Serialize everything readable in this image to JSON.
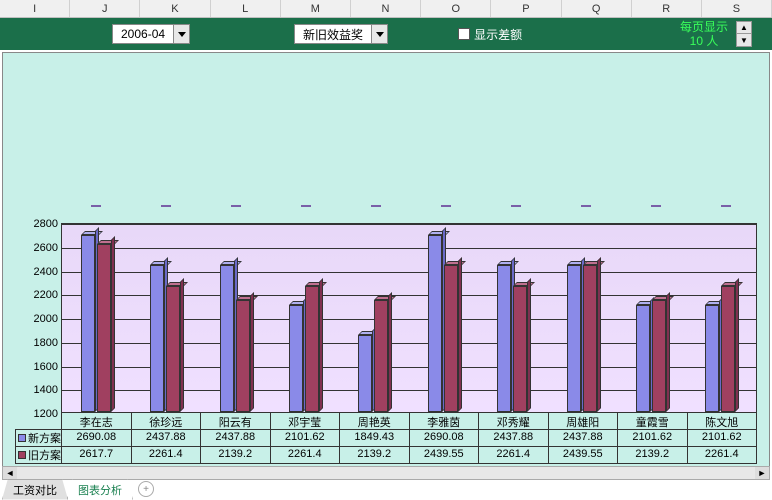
{
  "columns": [
    "I",
    "J",
    "K",
    "L",
    "M",
    "N",
    "O",
    "P",
    "Q",
    "R",
    "S"
  ],
  "toolbar": {
    "period": "2006-04",
    "metric": "新旧效益奖",
    "checkbox_label": "显示差额",
    "page_label_1": "每页显示",
    "page_label_2": "10 人"
  },
  "chart": {
    "type": "bar",
    "background_color": "#c8f0e8",
    "plot_bg_top": "#e8d8f8",
    "plot_bg_bottom": "#f0e0ff",
    "ylim": [
      1200,
      2800
    ],
    "ytick_step": 200,
    "yticks": [
      1200,
      1400,
      1600,
      1800,
      2000,
      2200,
      2400,
      2600,
      2800
    ],
    "categories": [
      "李在志",
      "徐珍远",
      "阳云有",
      "邓宇莹",
      "周艳英",
      "李雅茵",
      "邓秀耀",
      "周雄阳",
      "童霞雪",
      "陈文旭"
    ],
    "series": [
      {
        "name": "新方案",
        "color_face": "#8a8ae8",
        "color_top": "#b0b0f0",
        "color_side": "#6a6ac8",
        "values": [
          2690.08,
          2437.88,
          2437.88,
          2101.62,
          1849.43,
          2690.08,
          2437.88,
          2437.88,
          2101.62,
          2101.62
        ]
      },
      {
        "name": "旧方案",
        "color_face": "#a04060",
        "color_top": "#c07090",
        "color_side": "#803050",
        "values": [
          2617.7,
          2261.4,
          2139.2,
          2261.4,
          2139.2,
          2439.55,
          2261.4,
          2439.55,
          2139.2,
          2261.4
        ]
      }
    ],
    "dash_color": "#7a5fa8"
  },
  "tabs": {
    "t1": "工资对比",
    "t2": "图表分析"
  },
  "scrollbar": {
    "left": "◄",
    "right": "►"
  },
  "spinner": {
    "up": "▲",
    "down": "▼"
  }
}
